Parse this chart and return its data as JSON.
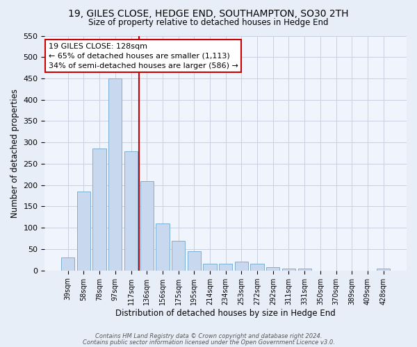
{
  "title": "19, GILES CLOSE, HEDGE END, SOUTHAMPTON, SO30 2TH",
  "subtitle": "Size of property relative to detached houses in Hedge End",
  "xlabel": "Distribution of detached houses by size in Hedge End",
  "ylabel": "Number of detached properties",
  "categories": [
    "39sqm",
    "58sqm",
    "78sqm",
    "97sqm",
    "117sqm",
    "136sqm",
    "156sqm",
    "175sqm",
    "195sqm",
    "214sqm",
    "234sqm",
    "253sqm",
    "272sqm",
    "292sqm",
    "311sqm",
    "331sqm",
    "350sqm",
    "370sqm",
    "389sqm",
    "409sqm",
    "428sqm"
  ],
  "values": [
    30,
    185,
    285,
    450,
    280,
    210,
    110,
    70,
    45,
    15,
    15,
    20,
    15,
    8,
    5,
    5,
    0,
    0,
    0,
    0,
    5
  ],
  "bar_color": "#c8d8ee",
  "bar_edge_color": "#7aafd4",
  "vline_x": 4.5,
  "vline_color": "#cc0000",
  "annotation_line1": "19 GILES CLOSE: 128sqm",
  "annotation_line2": "← 65% of detached houses are smaller (1,113)",
  "annotation_line3": "34% of semi-detached houses are larger (586) →",
  "annotation_box_color": "#ffffff",
  "annotation_box_edge": "#cc0000",
  "ylim": [
    0,
    550
  ],
  "yticks": [
    0,
    50,
    100,
    150,
    200,
    250,
    300,
    350,
    400,
    450,
    500,
    550
  ],
  "footer_line1": "Contains HM Land Registry data © Crown copyright and database right 2024.",
  "footer_line2": "Contains public sector information licensed under the Open Government Licence v3.0.",
  "bg_color": "#e8eef8",
  "plot_bg_color": "#f0f4fc",
  "grid_color": "#c8d0e0"
}
